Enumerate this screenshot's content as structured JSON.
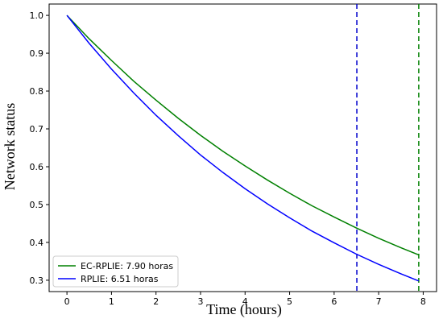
{
  "chart_data": {
    "type": "line",
    "xlabel": "Time (hours)",
    "ylabel": "Network status",
    "xlim": [
      -0.4,
      8.3
    ],
    "ylim": [
      0.27,
      1.03
    ],
    "xticks": [
      "0",
      "1",
      "2",
      "3",
      "4",
      "5",
      "6",
      "7",
      "8"
    ],
    "yticks": [
      "0.3",
      "0.4",
      "0.5",
      "0.6",
      "0.7",
      "0.8",
      "0.9",
      "1.0"
    ],
    "grid": false,
    "legend_position": "lower-left",
    "series": [
      {
        "name": "EC-RPLIE: 7.90 horas",
        "color": "#008000",
        "x": [
          0,
          0.5,
          1,
          1.5,
          2,
          2.5,
          3,
          3.5,
          4,
          4.5,
          5,
          5.5,
          6,
          6.5,
          7,
          7.5,
          7.9
        ],
        "y": [
          1.0,
          0.938,
          0.881,
          0.826,
          0.776,
          0.728,
          0.683,
          0.641,
          0.602,
          0.565,
          0.53,
          0.497,
          0.467,
          0.438,
          0.411,
          0.386,
          0.367
        ]
      },
      {
        "name": "RPLIE: 6.51 horas",
        "color": "#0000ff",
        "x": [
          0,
          0.5,
          1,
          1.5,
          2,
          2.5,
          3,
          3.5,
          4,
          4.5,
          5,
          5.5,
          6,
          6.5,
          7,
          7.5,
          7.9
        ],
        "y": [
          1.0,
          0.926,
          0.858,
          0.795,
          0.736,
          0.682,
          0.631,
          0.585,
          0.542,
          0.502,
          0.465,
          0.43,
          0.399,
          0.369,
          0.342,
          0.317,
          0.298
        ]
      }
    ],
    "vlines": [
      {
        "x": 6.51,
        "color": "#0000cc",
        "style": "dashed"
      },
      {
        "x": 7.9,
        "color": "#008000",
        "style": "dashed"
      }
    ]
  }
}
